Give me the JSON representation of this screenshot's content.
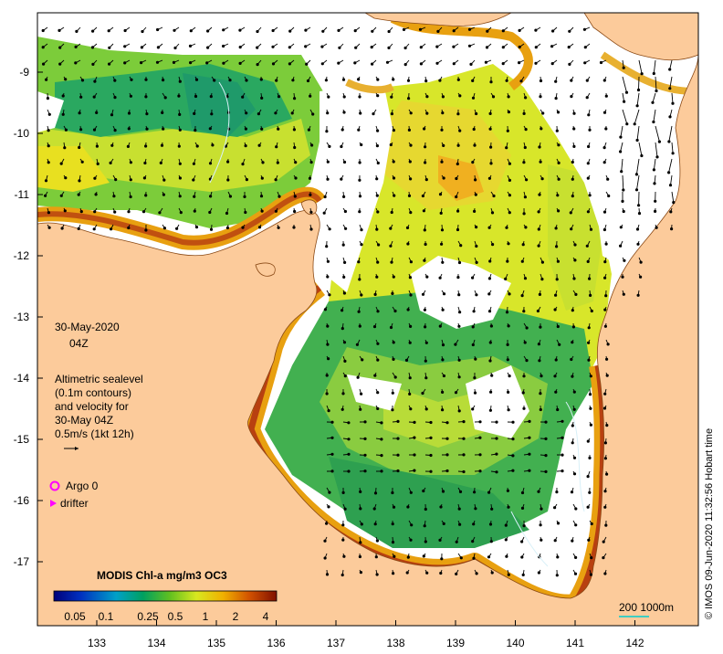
{
  "date": "30-May-2020",
  "time": "04Z",
  "legend": {
    "line1": "Altimetric sealevel",
    "line2": "(0.1m contours)",
    "line3": "and velocity for",
    "line4": "30-May 04Z",
    "line5": "0.5m/s (1kt 12h)"
  },
  "argo_label": "Argo 0",
  "drifter_label": "drifter",
  "colorbar": {
    "title": "MODIS Chl-a mg/m3 OC3",
    "ticks": [
      "0.05",
      "0.1",
      "0.25",
      "0.5",
      "1",
      "2",
      "4"
    ]
  },
  "scale_label": "200  1000m",
  "credit": "© IMOS 09-Jun-2020 11:32:56 Hobart time",
  "axes": {
    "lat_ticks": [
      "-9",
      "-10",
      "-11",
      "-12",
      "-13",
      "-14",
      "-15",
      "-16",
      "-17"
    ],
    "lon_ticks": [
      "133",
      "134",
      "135",
      "136",
      "137",
      "138",
      "139",
      "140",
      "141",
      "142"
    ]
  },
  "colors": {
    "land": "#fccb9b",
    "coast": "#8b4a16",
    "argo": "#ff00ff"
  }
}
